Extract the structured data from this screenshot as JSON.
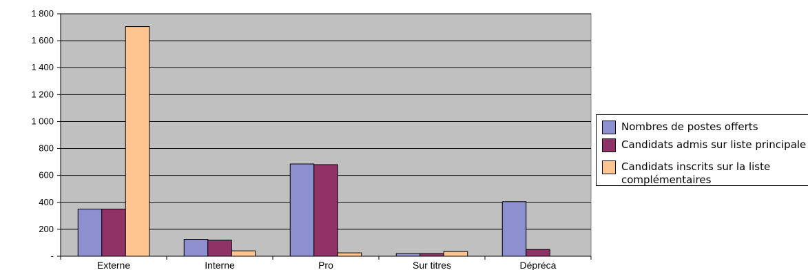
{
  "chart_data": {
    "type": "bar",
    "categories": [
      "Externe",
      "Interne",
      "Pro",
      "Sur titres",
      "Dépréca"
    ],
    "series": [
      {
        "name": "Nombres de postes offerts",
        "color": "#8e8fce",
        "values": [
          350,
          125,
          685,
          20,
          405
        ]
      },
      {
        "name": "Candidats admis sur liste principale",
        "color": "#8f3266",
        "values": [
          350,
          120,
          680,
          20,
          50
        ]
      },
      {
        "name": "Candidats inscrits sur la liste complémentaires",
        "color": "#ffc590",
        "values": [
          1705,
          40,
          25,
          35,
          0
        ]
      }
    ],
    "y_ticks": [
      "-",
      "200",
      "400",
      "600",
      "800",
      "1 000",
      "1 200",
      "1 400",
      "1 600",
      "1 800"
    ],
    "ylim": [
      0,
      1800
    ],
    "grid": true,
    "plot_background": "#c0c0c0",
    "legend_position": "right"
  }
}
